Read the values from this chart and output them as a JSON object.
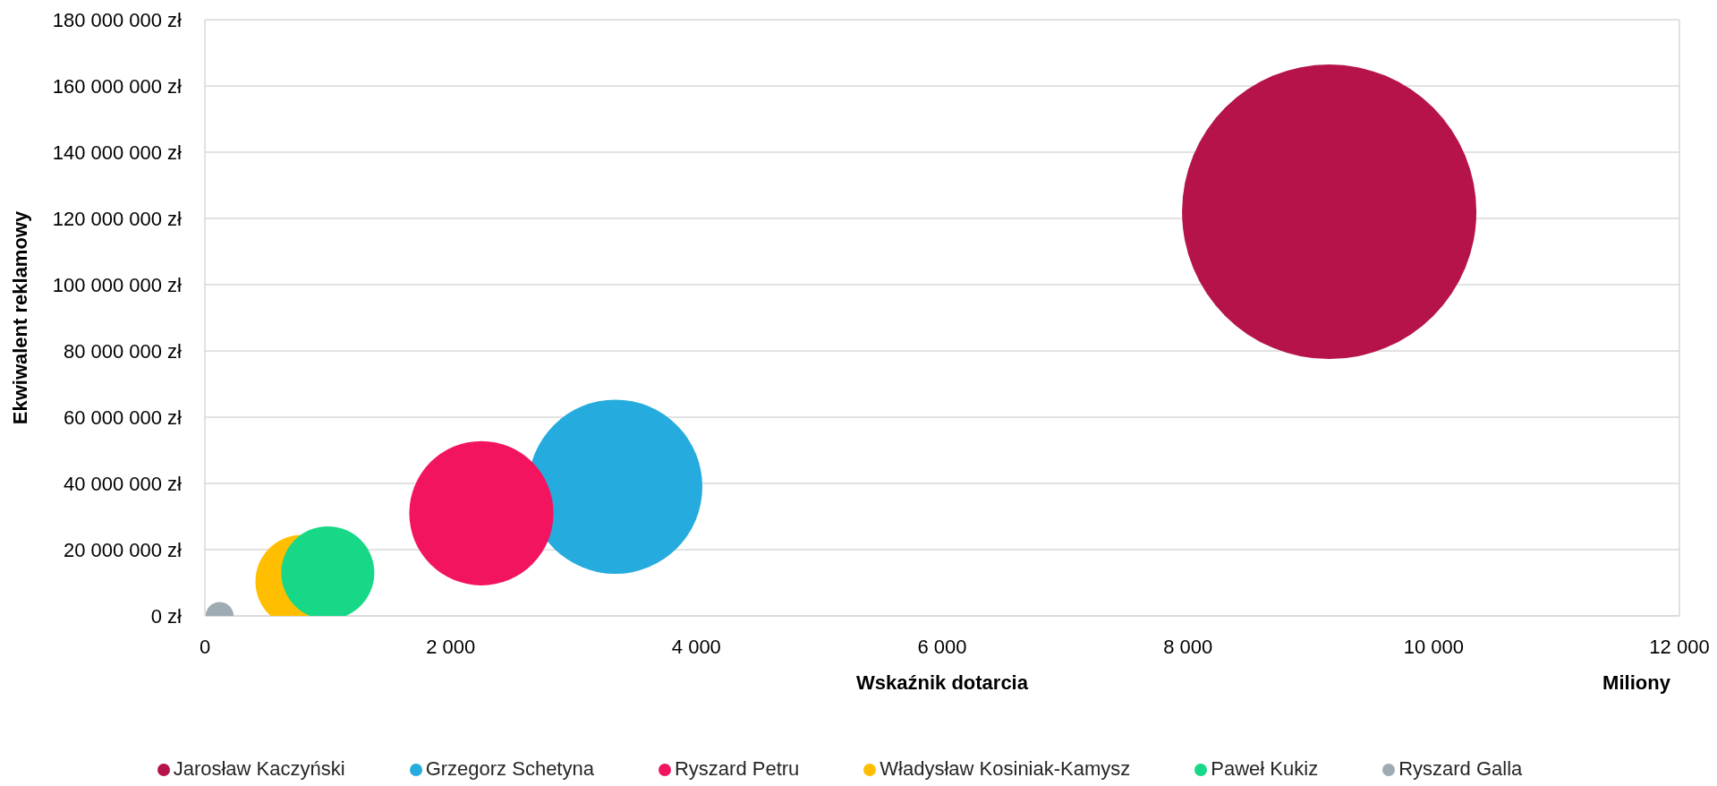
{
  "chart_data": {
    "type": "bubble",
    "xlabel": "Wskaźnik dotarcia",
    "ylabel": "Ekwiwalent reklamowy",
    "annotations": [
      "Miliony"
    ],
    "xlim": [
      0,
      12000
    ],
    "xticks": [
      0,
      {
        "value": 2000,
        "label": "2 000"
      },
      {
        "value": 4000,
        "label": "4 000"
      },
      {
        "value": 6000,
        "label": "6 000"
      },
      {
        "value": 8000,
        "label": "8 000"
      },
      {
        "value": 10000,
        "label": "10 000"
      },
      {
        "value": 12000,
        "label": "12 000"
      }
    ],
    "ylim": [
      0,
      180000000
    ],
    "yticks": [
      {
        "value": 0,
        "label": "0 zł"
      },
      {
        "value": 20000000,
        "label": "20 000 000 zł"
      },
      {
        "value": 40000000,
        "label": "40 000 000 zł"
      },
      {
        "value": 60000000,
        "label": "60 000 000 zł"
      },
      {
        "value": 80000000,
        "label": "80 000 000 zł"
      },
      {
        "value": 100000000,
        "label": "100 000 000 zł"
      },
      {
        "value": 120000000,
        "label": "120 000 000 zł"
      },
      {
        "value": 140000000,
        "label": "140 000 000 zł"
      },
      {
        "value": 160000000,
        "label": "160 000 000 zł"
      },
      {
        "value": 180000000,
        "label": "180 000 000 zł"
      }
    ],
    "series": [
      {
        "name": "Jarosław Kaczyński",
        "color": "#b5134a",
        "x": [
          9150
        ],
        "values": [
          122000000
        ],
        "sizes": [
          1
        ]
      },
      {
        "name": "Grzegorz Schetyna",
        "color": "#25abdd",
        "x": [
          3340
        ],
        "values": [
          39000000
        ],
        "sizes": [
          0.35
        ]
      },
      {
        "name": "Ryszard Petru",
        "color": "#f3145f",
        "x": [
          2250
        ],
        "values": [
          31000000
        ],
        "sizes": [
          0.24
        ]
      },
      {
        "name": "Władysław Kosiniak-Kamysz",
        "color": "#ffbf00",
        "x": [
          790
        ],
        "values": [
          10400000
        ],
        "sizes": [
          0.1
        ]
      },
      {
        "name": "Paweł Kukiz",
        "color": "#16d887",
        "x": [
          1000
        ],
        "values": [
          13000000
        ],
        "sizes": [
          0.1
        ]
      },
      {
        "name": "Ryszard Galla",
        "color": "#9eabb3",
        "x": [
          120
        ],
        "values": [
          0
        ],
        "sizes": [
          0.009
        ]
      }
    ],
    "grid": "y",
    "legend": "bottom",
    "marker": "circle"
  }
}
